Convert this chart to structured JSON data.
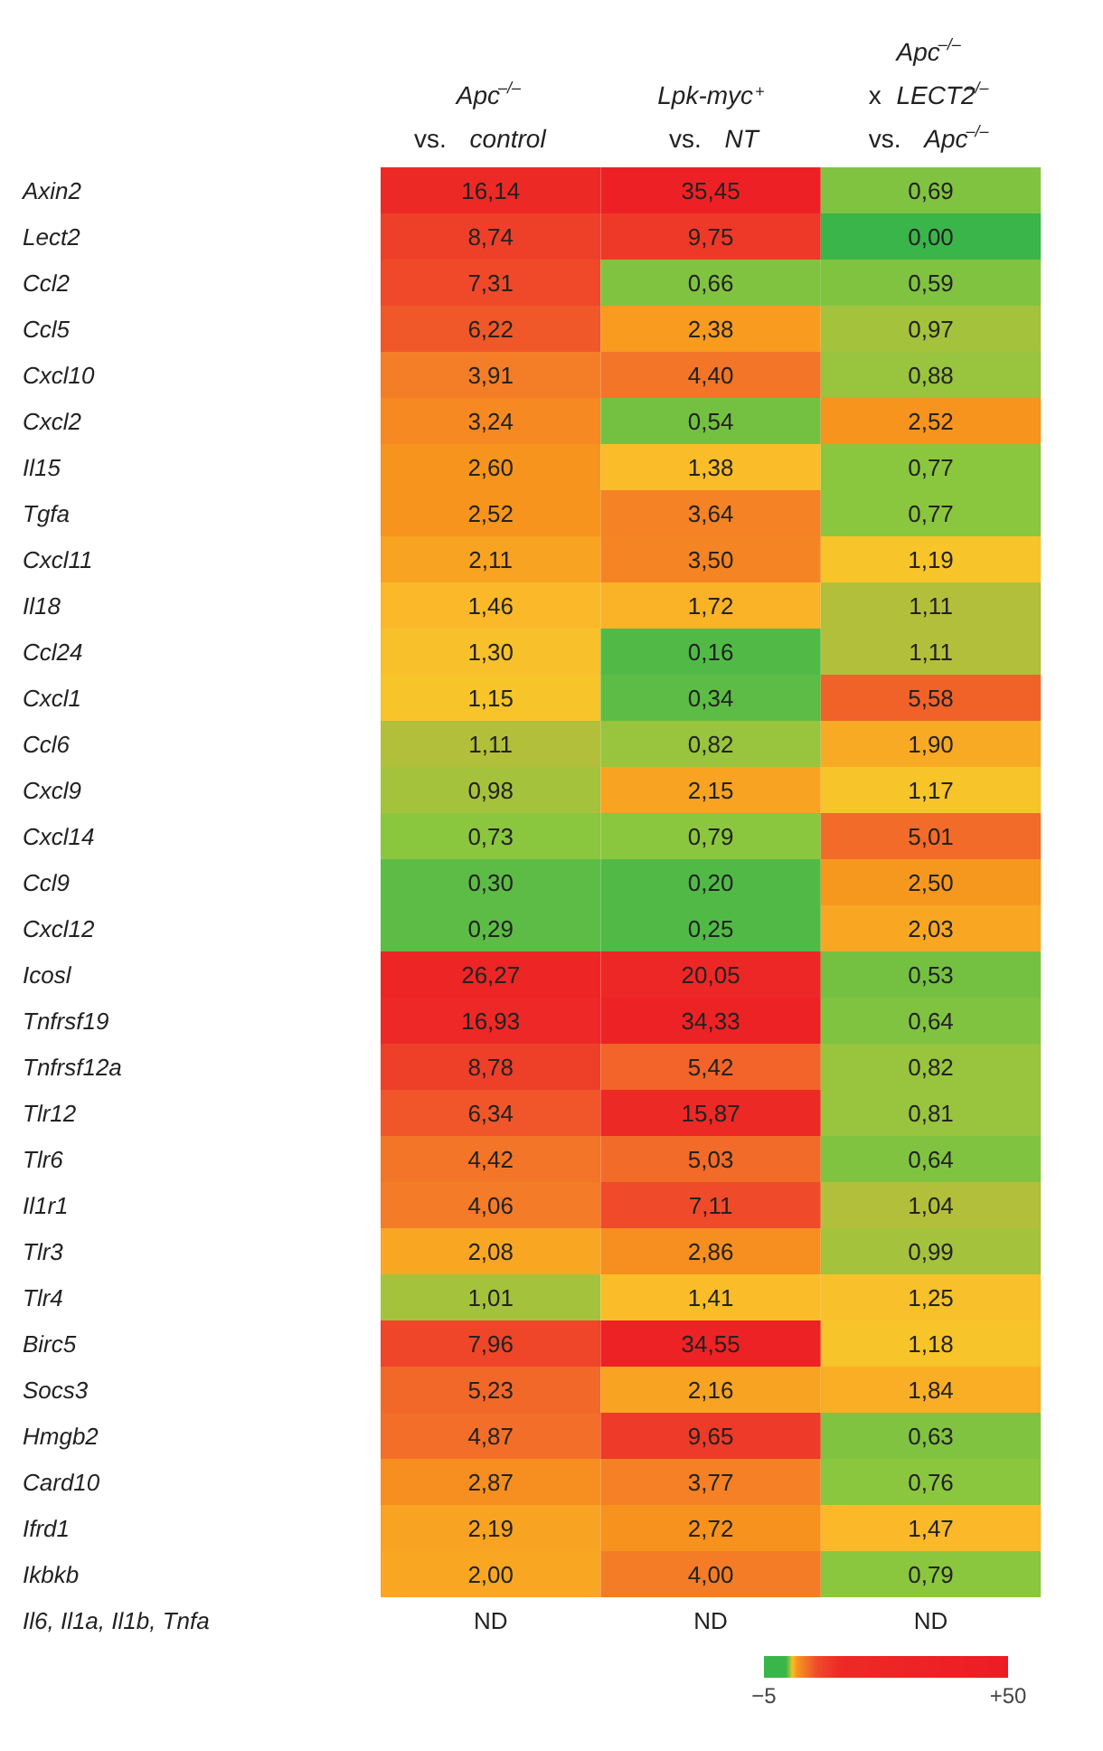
{
  "chart_data": {
    "type": "heatmap",
    "categories": [
      "Apc$^{–/–}$\nvs. control",
      "Lpk-myc$^{+}$\nvs. NT",
      "Apc$^{–/–}$\nx LECT2$^{–/–}$\nvs. Apc$^{–/–}$"
    ],
    "y_categories": [
      "Axin2",
      "Lect2",
      "Ccl2",
      "Ccl5",
      "Cxcl10",
      "Cxcl2",
      "Il15",
      "Tgfa",
      "Cxcl11",
      "Il18",
      "Ccl24",
      "Cxcl1",
      "Ccl6",
      "Cxcl9",
      "Cxcl14",
      "Ccl9",
      "Cxcl12",
      "Icosl",
      "Tnfrsf19",
      "Tnfrsf12a",
      "Tlr12",
      "Tlr6",
      "Il1r1",
      "Tlr3",
      "Tlr4",
      "Birc5",
      "Socs3",
      "Hmgb2",
      "Card10",
      "Ifrd1",
      "Ikbkb",
      "Il6, Il1a, Il1b, Tnfa"
    ],
    "cells": [
      [
        16.14,
        35.45,
        0.69
      ],
      [
        8.74,
        9.75,
        0.0
      ],
      [
        7.31,
        0.66,
        0.59
      ],
      [
        6.22,
        2.38,
        0.97
      ],
      [
        3.91,
        4.4,
        0.88
      ],
      [
        3.24,
        0.54,
        2.52
      ],
      [
        2.6,
        1.38,
        0.77
      ],
      [
        2.52,
        3.64,
        0.77
      ],
      [
        2.11,
        3.5,
        1.19
      ],
      [
        1.46,
        1.72,
        1.11
      ],
      [
        1.3,
        0.16,
        1.11
      ],
      [
        1.15,
        0.34,
        5.58
      ],
      [
        1.11,
        0.82,
        1.9
      ],
      [
        0.98,
        2.15,
        1.17
      ],
      [
        0.73,
        0.79,
        5.01
      ],
      [
        0.3,
        0.2,
        2.5
      ],
      [
        0.29,
        0.25,
        2.03
      ],
      [
        26.27,
        20.05,
        0.53
      ],
      [
        16.93,
        34.33,
        0.64
      ],
      [
        8.78,
        5.42,
        0.82
      ],
      [
        6.34,
        15.87,
        0.81
      ],
      [
        4.42,
        5.03,
        0.64
      ],
      [
        4.06,
        7.11,
        1.04
      ],
      [
        2.08,
        2.86,
        0.99
      ],
      [
        1.01,
        1.41,
        1.25
      ],
      [
        7.96,
        34.55,
        1.18
      ],
      [
        5.23,
        2.16,
        1.84
      ],
      [
        4.87,
        9.65,
        0.63
      ],
      [
        2.87,
        3.77,
        0.76
      ],
      [
        2.19,
        2.72,
        1.47
      ],
      [
        2.0,
        4.0,
        0.79
      ],
      [
        null,
        null,
        null
      ]
    ],
    "cell_labels": [
      [
        "16,14",
        "35,45",
        "0,69"
      ],
      [
        "8,74",
        "9,75",
        "0,00"
      ],
      [
        "7,31",
        "0,66",
        "0,59"
      ],
      [
        "6,22",
        "2,38",
        "0,97"
      ],
      [
        "3,91",
        "4,40",
        "0,88"
      ],
      [
        "3,24",
        "0,54",
        "2,52"
      ],
      [
        "2,60",
        "1,38",
        "0,77"
      ],
      [
        "2,52",
        "3,64",
        "0,77"
      ],
      [
        "2,11",
        "3,50",
        "1,19"
      ],
      [
        "1,46",
        "1,72",
        "1,11"
      ],
      [
        "1,30",
        "0,16",
        "1,11"
      ],
      [
        "1,15",
        "0,34",
        "5,58"
      ],
      [
        "1,11",
        "0,82",
        "1,90"
      ],
      [
        "0,98",
        "2,15",
        "1,17"
      ],
      [
        "0,73",
        "0,79",
        "5,01"
      ],
      [
        "0,30",
        "0,20",
        "2,50"
      ],
      [
        "0,29",
        "0,25",
        "2,03"
      ],
      [
        "26,27",
        "20,05",
        "0,53"
      ],
      [
        "16,93",
        "34,33",
        "0,64"
      ],
      [
        "8,78",
        "5,42",
        "0,82"
      ],
      [
        "6,34",
        "15,87",
        "0,81"
      ],
      [
        "4,42",
        "5,03",
        "0,64"
      ],
      [
        "4,06",
        "7,11",
        "1,04"
      ],
      [
        "2,08",
        "2,86",
        "0,99"
      ],
      [
        "1,01",
        "1,41",
        "1,25"
      ],
      [
        "7,96",
        "34,55",
        "1,18"
      ],
      [
        "5,23",
        "2,16",
        "1,84"
      ],
      [
        "4,87",
        "9,65",
        "0,63"
      ],
      [
        "2,87",
        "3,77",
        "0,76"
      ],
      [
        "2,19",
        "2,72",
        "1,47"
      ],
      [
        "2,00",
        "4,00",
        "0,79"
      ],
      [
        "ND",
        "ND",
        "ND"
      ]
    ],
    "clim": [
      -5,
      50
    ],
    "cticks": [
      -5,
      {
        "value": 50,
        "label": "+50"
      }
    ]
  }
}
